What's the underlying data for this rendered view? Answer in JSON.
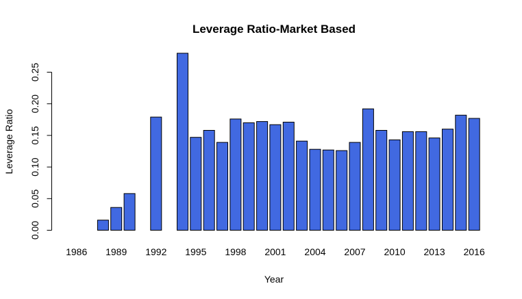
{
  "chart_data": {
    "type": "bar",
    "title": "Leverage Ratio-Market Based",
    "xlabel": "Year",
    "ylabel": "Leverage Ratio",
    "bar_color": "#4169E1",
    "ylim": [
      0,
      0.28
    ],
    "y_ticks": [
      "0.00",
      "0.05",
      "0.10",
      "0.15",
      "0.20",
      "0.25"
    ],
    "x_tick_labels": [
      "1986",
      "1989",
      "1992",
      "1995",
      "1998",
      "2001",
      "2004",
      "2007",
      "2010",
      "2013",
      "2016"
    ],
    "categories": [
      "1986",
      "1987",
      "1988",
      "1989",
      "1990",
      "1991",
      "1992",
      "1993",
      "1994",
      "1995",
      "1996",
      "1997",
      "1998",
      "1999",
      "2000",
      "2001",
      "2002",
      "2003",
      "2004",
      "2005",
      "2006",
      "2007",
      "2008",
      "2009",
      "2010",
      "2011",
      "2012",
      "2013",
      "2014",
      "2015",
      "2016"
    ],
    "values": [
      null,
      0.0,
      0.016,
      0.036,
      0.058,
      null,
      0.179,
      null,
      0.28,
      0.147,
      0.158,
      0.139,
      0.176,
      0.17,
      0.172,
      0.167,
      0.171,
      0.141,
      0.128,
      0.127,
      0.126,
      0.139,
      0.192,
      0.158,
      0.143,
      0.156,
      0.156,
      0.146,
      0.16,
      0.182,
      0.177
    ],
    "grid": false,
    "legend": "none"
  }
}
